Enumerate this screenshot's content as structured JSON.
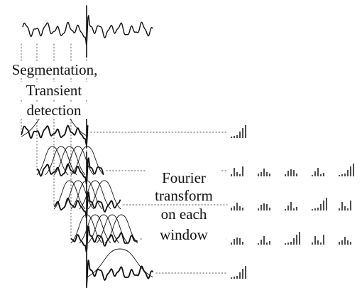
{
  "colors": {
    "stroke": "#111111",
    "dotted": "#777777",
    "background": "#ffffff"
  },
  "labels": {
    "segmentation_line1": "Segmentation,",
    "segmentation_line2": "Transient",
    "segmentation_line3": "detection",
    "fourier_line1": "Fourier",
    "fourier_line2": "transform",
    "fourier_line3": "on each",
    "fourier_line4": "window"
  }
}
